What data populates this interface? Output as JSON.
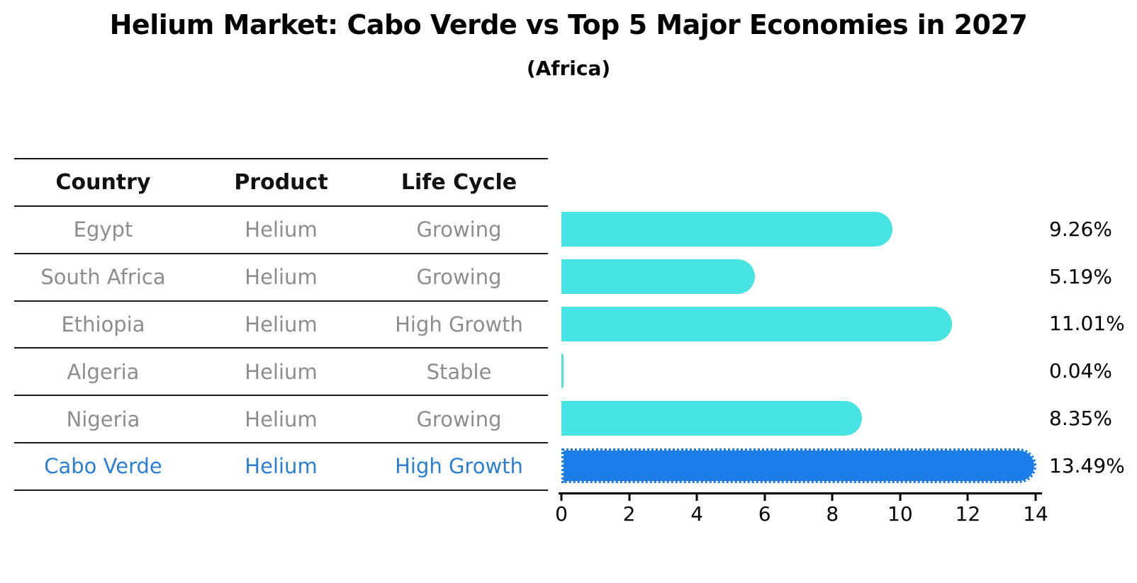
{
  "header": {
    "title": "Helium Market: Cabo Verde vs Top 5 Major Economies in 2027",
    "subtitle": "(Africa)"
  },
  "table": {
    "headers": [
      "Country",
      "Product",
      "Life Cycle"
    ],
    "rows": [
      {
        "country": "Egypt",
        "product": "Helium",
        "life_cycle": "Growing",
        "highlighted": false
      },
      {
        "country": "South Africa",
        "product": "Helium",
        "life_cycle": "Growing",
        "highlighted": false
      },
      {
        "country": "Ethiopia",
        "product": "Helium",
        "life_cycle": "High Growth",
        "highlighted": false
      },
      {
        "country": "Algeria",
        "product": "Helium",
        "life_cycle": "Stable",
        "highlighted": false
      },
      {
        "country": "Nigeria",
        "product": "Helium",
        "life_cycle": "Growing",
        "highlighted": false
      },
      {
        "country": "Cabo Verde",
        "product": "Helium",
        "life_cycle": "High Growth",
        "highlighted": true
      }
    ]
  },
  "chart_data": {
    "type": "bar",
    "orientation": "horizontal",
    "title": "Helium Market: Cabo Verde vs Top 5 Major Economies in 2027",
    "subtitle": "(Africa)",
    "categories": [
      "Egypt",
      "South Africa",
      "Ethiopia",
      "Algeria",
      "Nigeria",
      "Cabo Verde"
    ],
    "values": [
      9.26,
      5.19,
      11.01,
      0.04,
      8.35,
      13.49
    ],
    "value_labels": [
      "9.26%",
      "5.19%",
      "11.01%",
      "0.04%",
      "8.35%",
      "13.49%"
    ],
    "xlim": [
      0,
      14
    ],
    "x_ticks": [
      "0",
      "2",
      "4",
      "6",
      "8",
      "10",
      "12",
      "14"
    ],
    "grid": false,
    "legend": false,
    "highlight_index": 5,
    "colors": {
      "bar": "#46E5E3",
      "highlight_bar": "#1C7DE8",
      "highlight_text": "#2A7FD4",
      "row_text": "#8d8d8d",
      "header_text": "#111111",
      "value_text": "#000000",
      "axis": "#000000"
    }
  }
}
